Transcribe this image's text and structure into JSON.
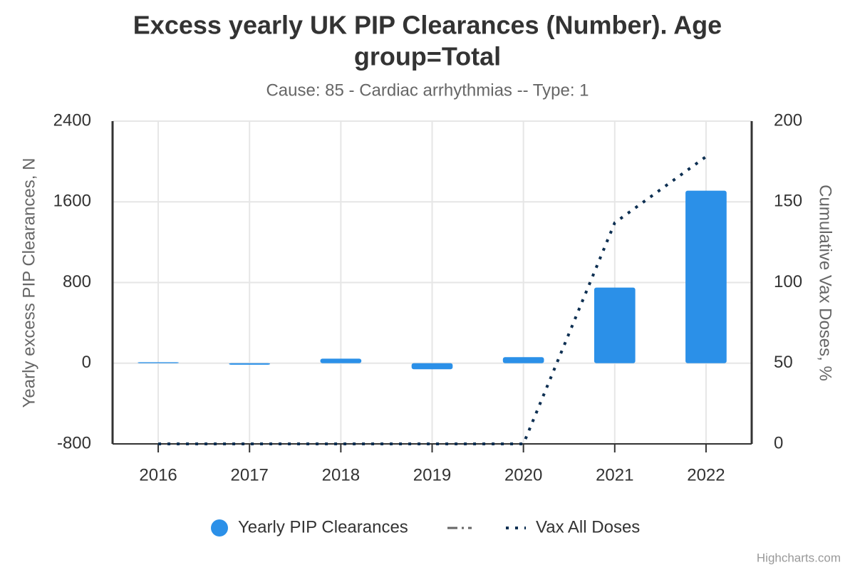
{
  "chart_data": {
    "type": "bar",
    "title": "Excess yearly UK PIP Clearances (Number). Age",
    "title_line2": "group=Total",
    "subtitle": "Cause: 85 - Cardiac arrhythmias -- Type: 1",
    "y_label": "Yearly excess PIP Clearances, N",
    "y2_label": "Cumulative Vax Doses, %",
    "categories": [
      "2016",
      "2017",
      "2018",
      "2019",
      "2020",
      "2021",
      "2022"
    ],
    "series": [
      {
        "name": "Yearly PIP Clearances",
        "type": "bar",
        "color": "#2b90e8",
        "values": [
          10,
          -15,
          45,
          -60,
          60,
          750,
          1710
        ]
      },
      {
        "name": "Vax All Doses",
        "type": "line",
        "axis": "y2",
        "dash": "dot",
        "color": "#0d2f52",
        "values": [
          0,
          0,
          0,
          0,
          0,
          137,
          178
        ]
      }
    ],
    "ylim": [
      -800,
      2400
    ],
    "yticks": [
      -800,
      0,
      800,
      1600,
      2400
    ],
    "y2lim": [
      0,
      200
    ],
    "y2ticks": [
      0,
      50,
      100,
      150,
      200
    ],
    "grid": true,
    "legend": "bottom",
    "credits": "Highcharts.com"
  }
}
